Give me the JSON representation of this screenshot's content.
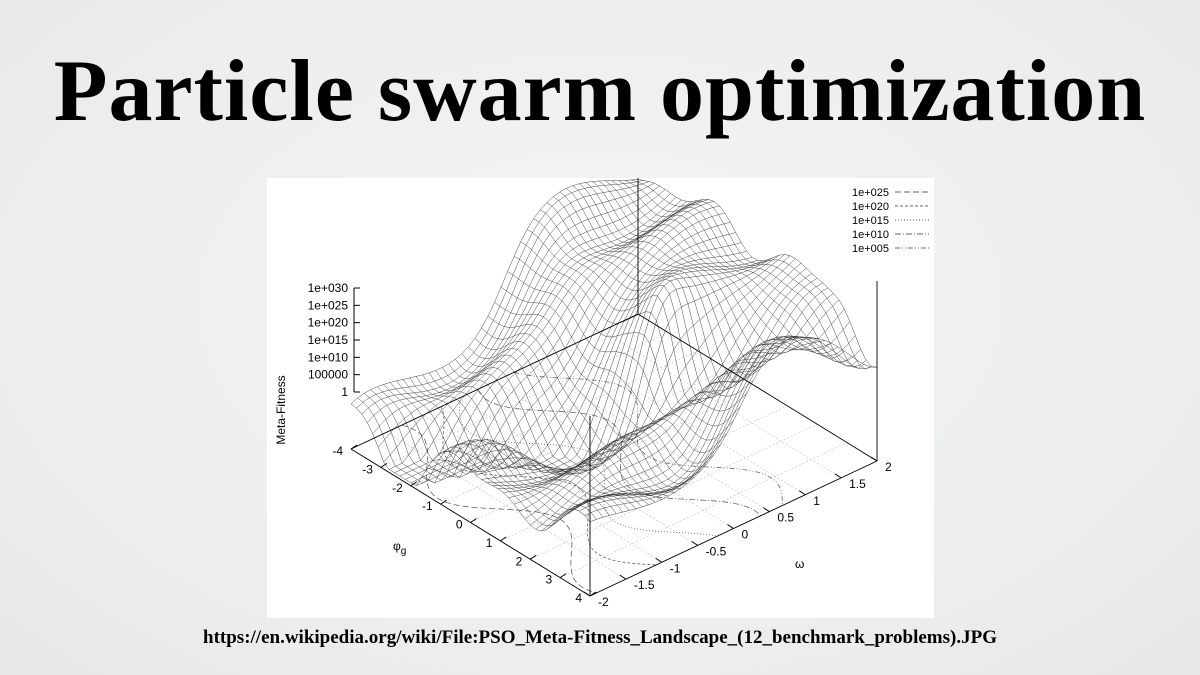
{
  "slide": {
    "title": "Particle swarm optimization",
    "source_url": "https://en.wikipedia.org/wiki/File:PSO_Meta-Fitness_Landscape_(12_benchmark_problems).JPG"
  },
  "chart_data": {
    "type": "surface",
    "title": "",
    "zlabel": "Meta-Fitness",
    "xlabel": "φ",
    "xlabel_sub": "g",
    "ylabel": "ω",
    "z_scale": "log",
    "z_ticks": [
      "1",
      "100000",
      "1e+010",
      "1e+015",
      "1e+020",
      "1e+025",
      "1e+030"
    ],
    "x_ticks": [
      "-4",
      "-3",
      "-2",
      "-1",
      "0",
      "1",
      "2",
      "3",
      "4"
    ],
    "y_ticks": [
      "-2",
      "-1.5",
      "-1",
      "-0.5",
      "0",
      "0.5",
      "1",
      "1.5",
      "2"
    ],
    "x_range": [
      -4,
      4
    ],
    "y_range": [
      -2,
      2
    ],
    "z_range_log10": [
      0,
      30
    ],
    "contour_levels": [
      "1e+025",
      "1e+020",
      "1e+015",
      "1e+010",
      "1e+005"
    ],
    "legend_position": "top-right",
    "grid": true
  }
}
